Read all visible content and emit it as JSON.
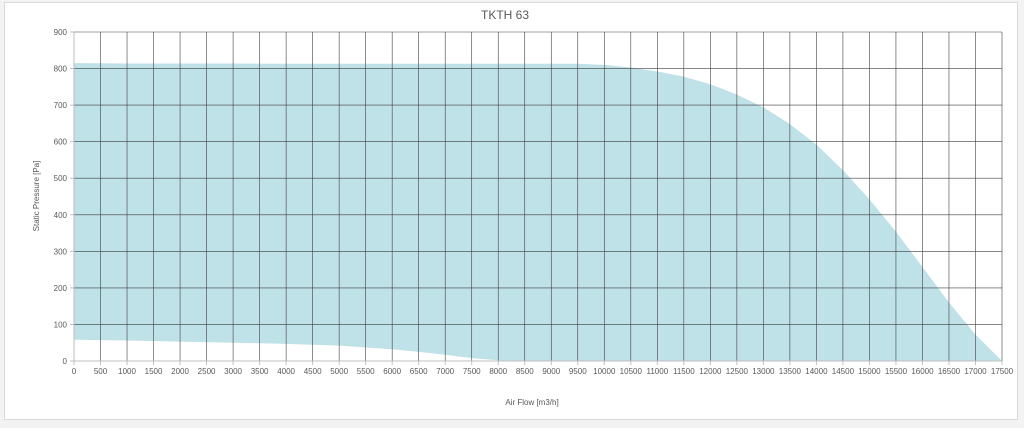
{
  "chart_data": {
    "type": "area",
    "title": "TKTH 63",
    "xlabel": "Air Flow [m3/h]",
    "ylabel": "Static Pressure [Pa]",
    "xlim": [
      0,
      17500
    ],
    "ylim": [
      0,
      900
    ],
    "x_ticks": [
      0,
      500,
      1000,
      1500,
      2000,
      2500,
      3000,
      3500,
      4000,
      4500,
      5000,
      5500,
      6000,
      6500,
      7000,
      7500,
      8000,
      8500,
      9000,
      9500,
      10000,
      10500,
      11000,
      11500,
      12000,
      12500,
      13000,
      13500,
      14000,
      14500,
      15000,
      15500,
      16000,
      16500,
      17000,
      17500
    ],
    "y_ticks": [
      0,
      100,
      200,
      300,
      400,
      500,
      600,
      700,
      800,
      900
    ],
    "grid": true,
    "fill_color": "#bfe1e8",
    "grid_color": "#3f3f3f",
    "axis_color": "#bfbfbf",
    "series": [
      {
        "role": "upper",
        "x": [
          0,
          1000,
          2000,
          3000,
          4000,
          5000,
          6000,
          7000,
          8000,
          9000,
          9500,
          10000,
          10500,
          11000,
          11500,
          12000,
          12500,
          13000,
          13500,
          14000,
          14500,
          15000,
          15500,
          16000,
          16500,
          17000,
          17500
        ],
        "y": [
          815,
          814,
          814,
          814,
          813,
          813,
          813,
          813,
          813,
          813,
          813,
          810,
          803,
          792,
          778,
          757,
          729,
          694,
          648,
          592,
          522,
          442,
          354,
          257,
          160,
          72,
          0
        ]
      },
      {
        "role": "lower",
        "x": [
          0,
          1000,
          2000,
          3000,
          4000,
          5000,
          6000,
          6500,
          7000,
          7500,
          8000,
          8200,
          17500
        ],
        "y": [
          58,
          56,
          53,
          50,
          47,
          42,
          32,
          25,
          17,
          8,
          2,
          0,
          0
        ]
      }
    ]
  }
}
